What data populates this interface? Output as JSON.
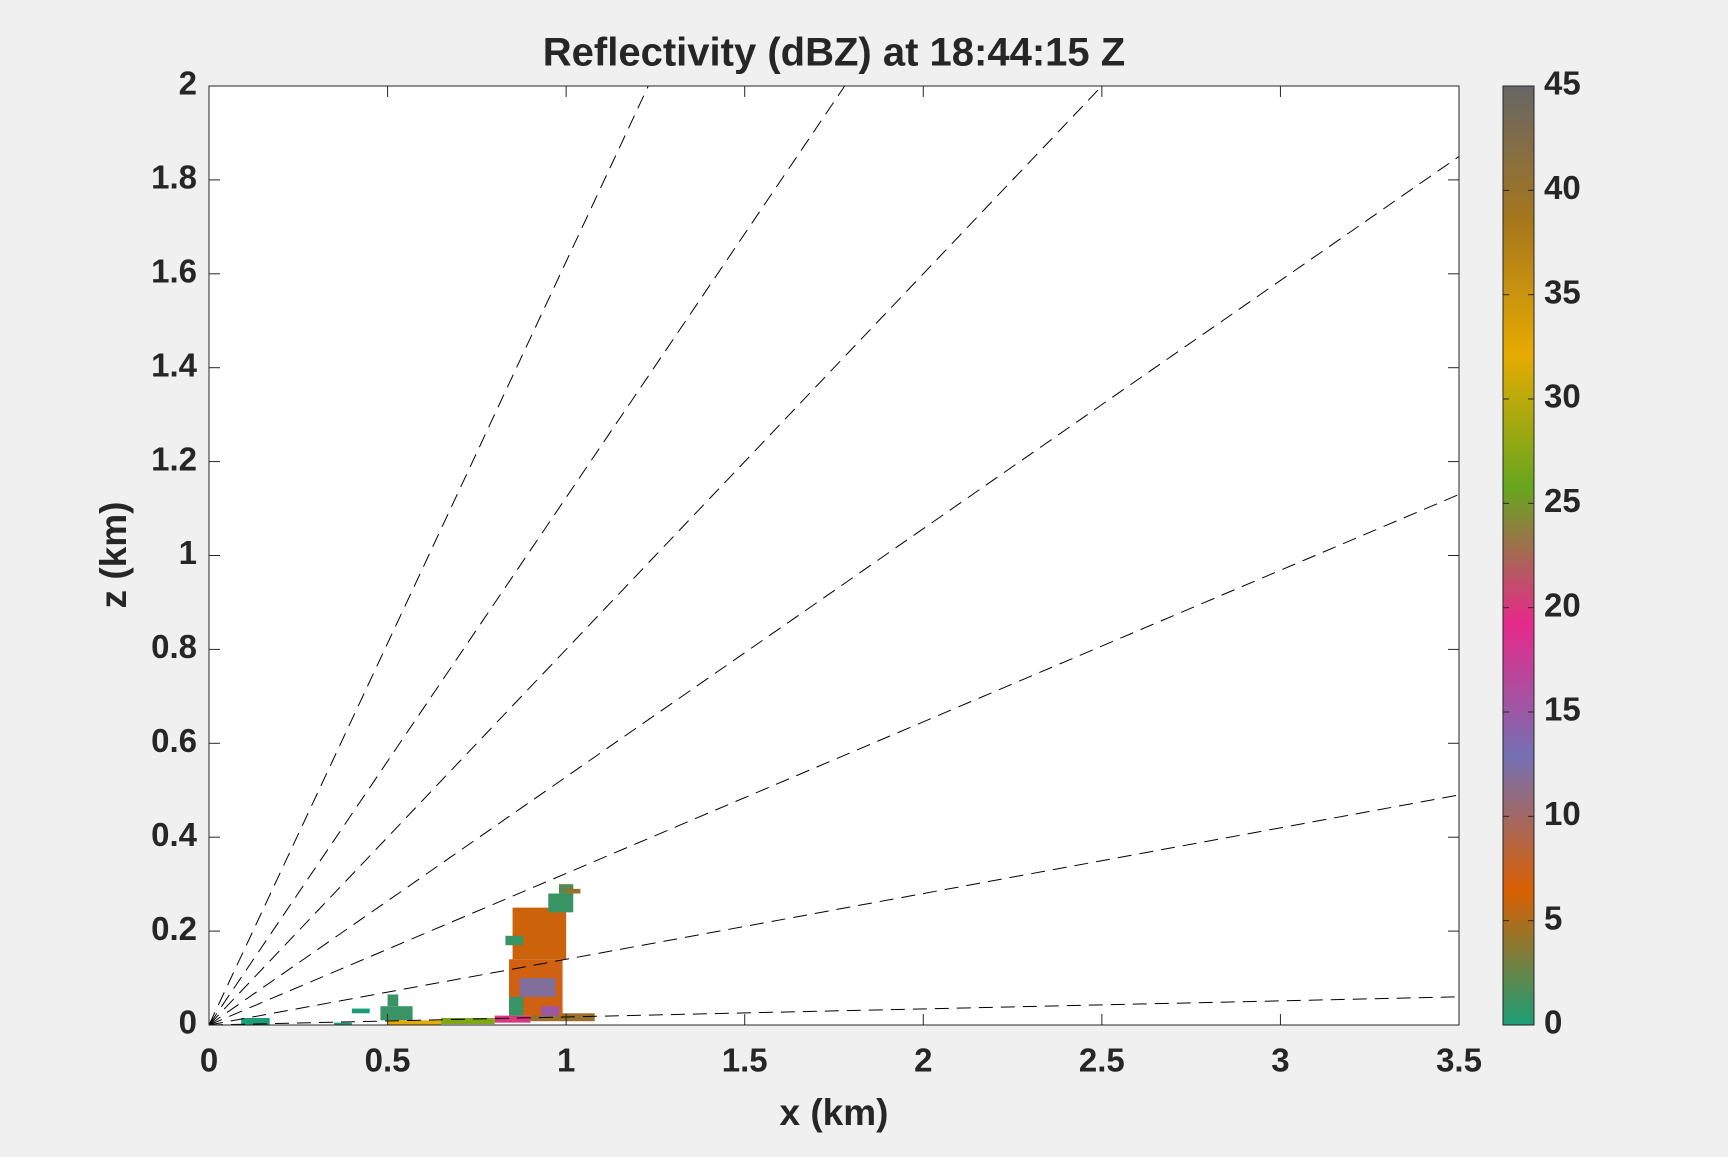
{
  "chart_data": {
    "type": "rhi",
    "title": "Reflectivity (dBZ) at 18:44:15 Z",
    "xlabel": "x (km)",
    "ylabel": "z (km)",
    "xlim": [
      0,
      3.5
    ],
    "ylim": [
      0,
      2
    ],
    "xticks": [
      0,
      0.5,
      1,
      1.5,
      2,
      2.5,
      3,
      3.5
    ],
    "yticks": [
      0,
      0.2,
      0.4,
      0.6,
      0.8,
      1,
      1.2,
      1.4,
      1.6,
      1.8,
      2
    ],
    "clim": [
      0,
      45
    ],
    "cticks": [
      0,
      5,
      10,
      15,
      20,
      25,
      30,
      35,
      40,
      45
    ],
    "colormap": [
      "#1b9e77",
      "#d95f02",
      "#7570b3",
      "#e7298a",
      "#66a61e",
      "#e6ab02",
      "#a6761d",
      "#666666"
    ],
    "rays": [
      {
        "x": [
          0,
          3.5
        ],
        "y": [
          0,
          0.06
        ]
      },
      {
        "x": [
          0,
          3.5
        ],
        "y": [
          0,
          0.49
        ]
      },
      {
        "x": [
          0,
          3.5
        ],
        "y": [
          0,
          1.13
        ]
      },
      {
        "x": [
          0,
          3.5
        ],
        "y": [
          0,
          1.85
        ]
      },
      {
        "x": [
          0,
          2.5
        ],
        "y": [
          0,
          2
        ]
      },
      {
        "x": [
          0,
          1.78
        ],
        "y": [
          0,
          2
        ]
      },
      {
        "x": [
          0,
          1.23
        ],
        "y": [
          0,
          2
        ]
      }
    ],
    "cells": [
      {
        "x": [
          0.09,
          0.17
        ],
        "y": [
          0,
          0.015
        ],
        "value": 0
      },
      {
        "x": [
          0.35,
          0.4
        ],
        "y": [
          0,
          0.005
        ],
        "value": 0
      },
      {
        "x": [
          0.4,
          0.45
        ],
        "y": [
          0.025,
          0.035
        ],
        "value": 0
      },
      {
        "x": [
          0.48,
          0.57
        ],
        "y": [
          0.01,
          0.04
        ],
        "value": 1
      },
      {
        "x": [
          0.5,
          0.53
        ],
        "y": [
          0.04,
          0.065
        ],
        "value": 1
      },
      {
        "x": [
          0.5,
          0.65
        ],
        "y": [
          0,
          0.01
        ],
        "value": 32
      },
      {
        "x": [
          0.65,
          0.8
        ],
        "y": [
          0.002,
          0.015
        ],
        "value": 27
      },
      {
        "x": [
          0.8,
          0.9
        ],
        "y": [
          0.005,
          0.02
        ],
        "value": 20
      },
      {
        "x": [
          0.9,
          1.08
        ],
        "y": [
          0.008,
          0.025
        ],
        "value": 40
      },
      {
        "x": [
          0.84,
          0.99
        ],
        "y": [
          0.02,
          0.14
        ],
        "value": 7
      },
      {
        "x": [
          0.87,
          0.97
        ],
        "y": [
          0.06,
          0.1
        ],
        "value": 12
      },
      {
        "x": [
          0.84,
          0.88
        ],
        "y": [
          0.02,
          0.06
        ],
        "value": 1
      },
      {
        "x": [
          0.93,
          0.98
        ],
        "y": [
          0.02,
          0.04
        ],
        "value": 15
      },
      {
        "x": [
          0.85,
          1.0
        ],
        "y": [
          0.14,
          0.25
        ],
        "value": 6
      },
      {
        "x": [
          0.83,
          0.88
        ],
        "y": [
          0.17,
          0.19
        ],
        "value": 1
      },
      {
        "x": [
          0.95,
          1.02
        ],
        "y": [
          0.24,
          0.28
        ],
        "value": 1
      },
      {
        "x": [
          0.98,
          1.02
        ],
        "y": [
          0.28,
          0.3
        ],
        "value": 2
      },
      {
        "x": [
          1.0,
          1.04
        ],
        "y": [
          0.28,
          0.29
        ],
        "value": 40
      }
    ]
  }
}
